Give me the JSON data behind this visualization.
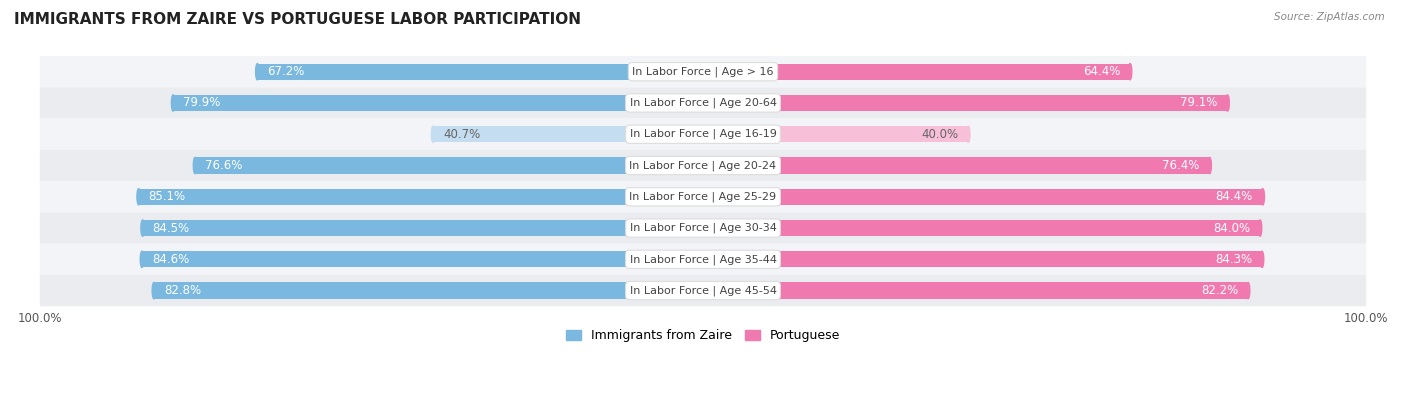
{
  "title": "IMMIGRANTS FROM ZAIRE VS PORTUGUESE LABOR PARTICIPATION",
  "source": "Source: ZipAtlas.com",
  "categories": [
    "In Labor Force | Age > 16",
    "In Labor Force | Age 20-64",
    "In Labor Force | Age 16-19",
    "In Labor Force | Age 20-24",
    "In Labor Force | Age 25-29",
    "In Labor Force | Age 30-34",
    "In Labor Force | Age 35-44",
    "In Labor Force | Age 45-54"
  ],
  "zaire_values": [
    67.2,
    79.9,
    40.7,
    76.6,
    85.1,
    84.5,
    84.6,
    82.8
  ],
  "portuguese_values": [
    64.4,
    79.1,
    40.0,
    76.4,
    84.4,
    84.0,
    84.3,
    82.2
  ],
  "zaire_color": "#7ab8e0",
  "zaire_color_light": "#c5ddf0",
  "portuguese_color": "#f07ab0",
  "portuguese_color_light": "#f7c0d8",
  "row_bg_color_odd": "#f0f2f5",
  "row_bg_color_even": "#e8eaed",
  "max_value": 100.0,
  "label_fontsize": 8.0,
  "value_fontsize": 8.5,
  "title_fontsize": 11,
  "bar_height": 0.52,
  "legend_labels": [
    "Immigrants from Zaire",
    "Portuguese"
  ]
}
